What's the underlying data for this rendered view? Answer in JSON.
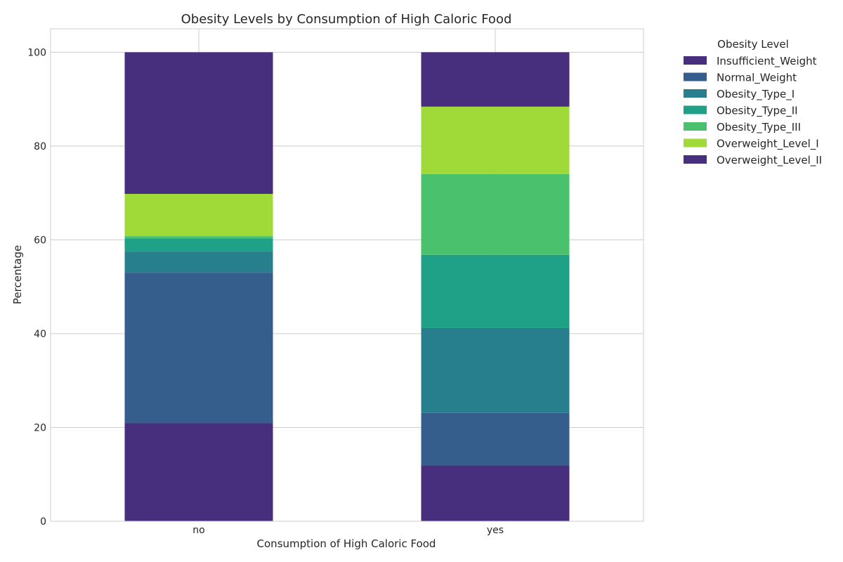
{
  "chart_data": {
    "type": "bar",
    "stacked": true,
    "normalized_percent": true,
    "title": "Obesity Levels by Consumption of High Caloric Food",
    "xlabel": "Consumption of High Caloric Food",
    "ylabel": "Percentage",
    "categories": [
      "no",
      "yes"
    ],
    "ylim": [
      0,
      105
    ],
    "yticks": [
      0,
      20,
      40,
      60,
      80,
      100
    ],
    "grid": true,
    "legend_title": "Obesity Level",
    "legend_position": "outside right",
    "series": [
      {
        "name": "Insufficient_Weight",
        "color": "#472f7d",
        "values": [
          20.9,
          11.9
        ]
      },
      {
        "name": "Normal_Weight",
        "color": "#355e8d",
        "values": [
          32.1,
          11.2
        ]
      },
      {
        "name": "Obesity_Type_I",
        "color": "#277f8e",
        "values": [
          4.5,
          18.1
        ]
      },
      {
        "name": "Obesity_Type_II",
        "color": "#1fa187",
        "values": [
          2.8,
          15.6
        ]
      },
      {
        "name": "Obesity_Type_III",
        "color": "#4ac16d",
        "values": [
          0.5,
          17.2
        ]
      },
      {
        "name": "Overweight_Level_I",
        "color": "#a0da39",
        "values": [
          9.0,
          14.4
        ]
      },
      {
        "name": "Overweight_Level_II",
        "color": "#472f7d",
        "values": [
          30.2,
          11.6
        ]
      }
    ]
  }
}
